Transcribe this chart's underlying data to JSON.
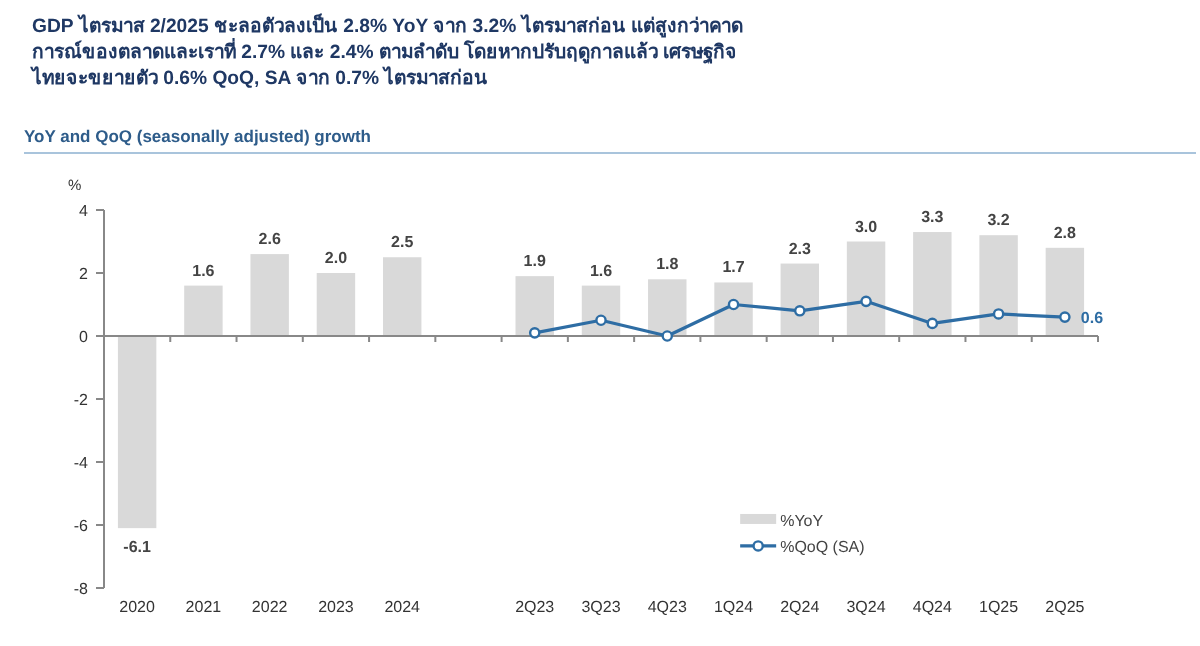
{
  "chart_data": {
    "type": "bar",
    "title": "GDP ไตรมาส 2/2025 ชะลอตัวลงเป็น 2.8% YoY จาก 3.2% ไตรมาสก่อน แต่สูงกว่าคาดการณ์ของตลาดและเราที่ 2.7% และ 2.4% ตามลำดับ โดยหากปรับฤดูกาลแล้ว เศรษฐกิจไทยจะขยายตัว 0.6% QoQ, SA จาก 0.7% ไตรมาสก่อน",
    "subtitle": "YoY and QoQ (seasonally adjusted) growth",
    "ylabel": "%",
    "categories": [
      "2020",
      "2021",
      "2022",
      "2023",
      "2024",
      null,
      "2Q23",
      "3Q23",
      "4Q23",
      "1Q24",
      "2Q24",
      "3Q24",
      "4Q24",
      "1Q25",
      "2Q25"
    ],
    "series": [
      {
        "name": "%YoY",
        "color": "#d9d9d9",
        "values": [
          -6.1,
          1.6,
          2.6,
          2.0,
          2.5,
          null,
          1.9,
          1.6,
          1.8,
          1.7,
          2.3,
          3.0,
          3.3,
          3.2,
          2.8
        ],
        "value_labels": [
          "-6.1",
          "1.6",
          "2.6",
          "2.0",
          "2.5",
          null,
          "1.9",
          "1.6",
          "1.8",
          "1.7",
          "2.3",
          "3.0",
          "3.3",
          "3.2",
          "2.8"
        ]
      },
      {
        "name": "%QoQ (SA)",
        "type": "line",
        "color": "#2e6da4",
        "marker": "circle",
        "values": [
          null,
          null,
          null,
          null,
          null,
          null,
          0.1,
          0.5,
          0.0,
          1.0,
          0.8,
          1.1,
          0.4,
          0.7,
          0.6
        ],
        "value_labels": [
          null,
          null,
          null,
          null,
          null,
          null,
          null,
          null,
          null,
          null,
          null,
          null,
          null,
          null,
          "0.6"
        ]
      }
    ],
    "ylim": [
      -8,
      4
    ],
    "yticks": [
      -8,
      -6,
      -4,
      -2,
      0,
      2,
      4
    ],
    "legend": "bottom right"
  }
}
